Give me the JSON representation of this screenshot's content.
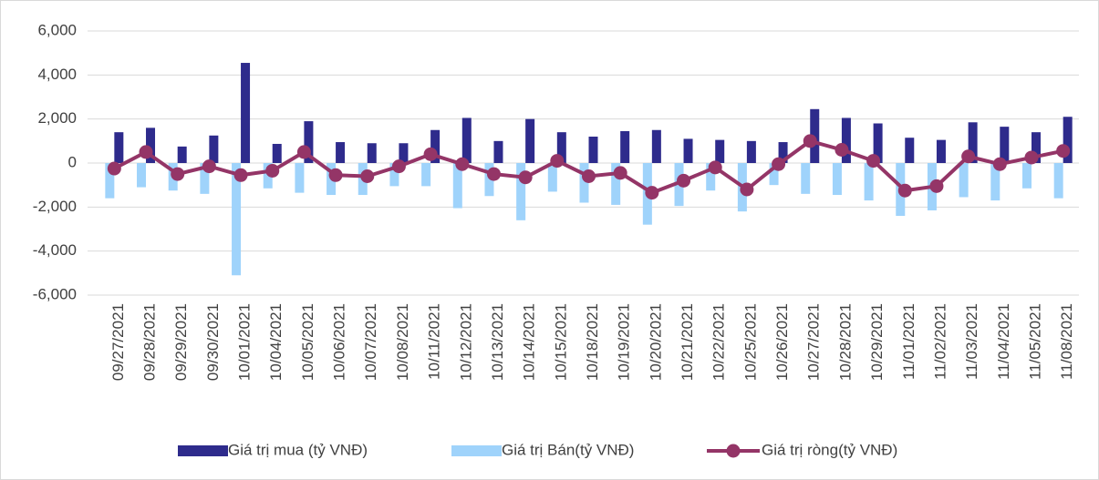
{
  "chart_data": {
    "type": "combo",
    "categories": [
      "09/27/2021",
      "09/28/2021",
      "09/29/2021",
      "09/30/2021",
      "10/01/2021",
      "10/04/2021",
      "10/05/2021",
      "10/06/2021",
      "10/07/2021",
      "10/08/2021",
      "10/11/2021",
      "10/12/2021",
      "10/13/2021",
      "10/14/2021",
      "10/15/2021",
      "10/18/2021",
      "10/19/2021",
      "10/20/2021",
      "10/21/2021",
      "10/22/2021",
      "10/25/2021",
      "10/26/2021",
      "10/27/2021",
      "10/28/2021",
      "10/29/2021",
      "11/01/2021",
      "11/02/2021",
      "11/03/2021",
      "11/04/2021",
      "11/05/2021",
      "11/08/2021"
    ],
    "series": [
      {
        "name": "Giá trị mua (tỷ VNĐ)",
        "type": "bar",
        "color": "#2e2b8c",
        "values": [
          1400,
          1600,
          750,
          1250,
          4550,
          870,
          1900,
          950,
          900,
          900,
          1500,
          2050,
          1000,
          2000,
          1400,
          1200,
          1450,
          1500,
          1100,
          1050,
          1000,
          950,
          2450,
          2050,
          1800,
          1150,
          1050,
          1850,
          1650,
          1400,
          2100
        ]
      },
      {
        "name": "Giá trị Bán(tỷ VNĐ)",
        "type": "bar",
        "color": "#9fd3fb",
        "values": [
          -1600,
          -1100,
          -1250,
          -1400,
          -5100,
          -1150,
          -1350,
          -1450,
          -1450,
          -1050,
          -1050,
          -2050,
          -1500,
          -2600,
          -1300,
          -1800,
          -1900,
          -2800,
          -1950,
          -1250,
          -2200,
          -1000,
          -1400,
          -1450,
          -1700,
          -2400,
          -2150,
          -1550,
          -1700,
          -1150,
          -1600
        ]
      },
      {
        "name": "Giá trị ròng(tỷ VNĐ)",
        "type": "line",
        "color": "#943567",
        "values": [
          -250,
          500,
          -500,
          -150,
          -550,
          -350,
          500,
          -550,
          -600,
          -150,
          400,
          -50,
          -500,
          -650,
          100,
          -600,
          -450,
          -1350,
          -800,
          -200,
          -1200,
          -50,
          1000,
          600,
          100,
          -1250,
          -1050,
          300,
          -50,
          250,
          550
        ]
      }
    ],
    "ylim": [
      -6000,
      6000
    ],
    "yticks": [
      {
        "value": -6000,
        "label": "-6,000"
      },
      {
        "value": -4000,
        "label": "-4,000"
      },
      {
        "value": -2000,
        "label": "-2,000"
      },
      0,
      {
        "value": 2000,
        "label": "2,000"
      },
      {
        "value": 4000,
        "label": "4,000"
      },
      {
        "value": 6000,
        "label": "6,000"
      }
    ],
    "grid": true
  }
}
